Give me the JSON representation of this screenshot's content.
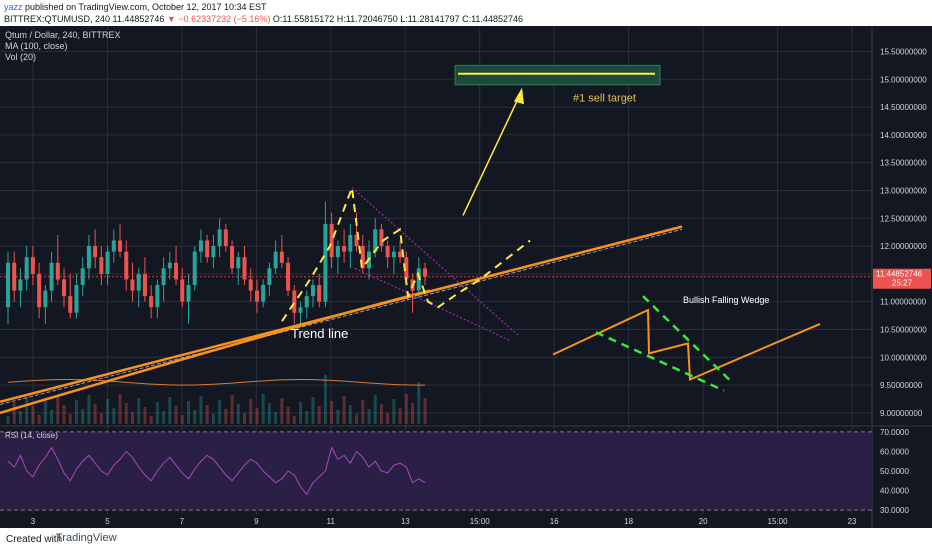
{
  "header": {
    "author": "yazz",
    "published_text": "published on TradingView.com, October 12, 2017 10:34 EST",
    "symbol_line_prefix": "BITTREX:QTUMUSD, 240  11.44852746",
    "change": "▼ −0.62337232 (−5.16%)",
    "ohlc": "O:11.55815172  H:11.72046750  L:11.28141797  C:11.44852746"
  },
  "legend": {
    "title": "Qtum / Dollar, 240, BITTREX",
    "ma": "MA (100, close)",
    "vol": "Vol (20)",
    "rsi": "RSI (14, close)"
  },
  "annotations": {
    "sell_target": "#1 sell target",
    "trend_line": "Trend line",
    "wedge": "Bullish Falling Wedge"
  },
  "price_badge": {
    "price": "11.44852746",
    "countdown": "25:27"
  },
  "footer": {
    "created_with": "Created with",
    "brand": "TradingView"
  },
  "colors": {
    "bg": "#131722",
    "grid": "#2a2e39",
    "up": "#26a69a",
    "down": "#ef5350",
    "annotation_yellow": "#ffeb3b",
    "annotation_orange": "#f7931a",
    "annotation_green": "#3ce63c",
    "wedge_purple": "#9c27b0",
    "rsi_fill": "#2a1f45"
  },
  "chart_data": {
    "type": "candlestick",
    "price_axis": {
      "ticks": [
        "15.50000000",
        "15.00000000",
        "14.50000000",
        "14.00000000",
        "13.50000000",
        "13.00000000",
        "12.50000000",
        "12.00000000",
        "11.50000000",
        "11.00000000",
        "10.50000000",
        "10.00000000",
        "9.50000000",
        "9.00000000"
      ],
      "ylim": [
        8.8,
        15.85
      ]
    },
    "rsi_axis": {
      "ticks": [
        "70.0000",
        "60.0000",
        "50.0000",
        "40.0000",
        "30.0000"
      ],
      "ylim": [
        28,
        72
      ],
      "bands": [
        70,
        30
      ]
    },
    "x_tick_labels": [
      "3",
      "5",
      "7",
      "9",
      "11",
      "13",
      "15:00",
      "16",
      "18",
      "20",
      "15:00",
      "23"
    ],
    "candles": [
      [
        10.9,
        11.9,
        10.6,
        11.7
      ],
      [
        11.7,
        11.9,
        11.0,
        11.2
      ],
      [
        11.2,
        11.6,
        10.9,
        11.4
      ],
      [
        11.4,
        12.0,
        11.2,
        11.8
      ],
      [
        11.8,
        12.0,
        11.3,
        11.5
      ],
      [
        11.5,
        11.7,
        10.7,
        10.9
      ],
      [
        10.9,
        11.3,
        10.6,
        11.2
      ],
      [
        11.2,
        11.9,
        11.0,
        11.7
      ],
      [
        11.7,
        12.2,
        11.3,
        11.4
      ],
      [
        11.4,
        11.6,
        10.9,
        11.1
      ],
      [
        11.1,
        11.5,
        10.7,
        10.8
      ],
      [
        10.8,
        11.5,
        10.7,
        11.3
      ],
      [
        11.3,
        11.8,
        11.1,
        11.6
      ],
      [
        11.6,
        12.2,
        11.4,
        12.0
      ],
      [
        12.0,
        12.3,
        11.6,
        11.8
      ],
      [
        11.8,
        12.0,
        11.3,
        11.5
      ],
      [
        11.5,
        12.0,
        11.3,
        11.9
      ],
      [
        11.9,
        12.3,
        11.7,
        12.1
      ],
      [
        12.1,
        12.4,
        11.8,
        11.9
      ],
      [
        11.9,
        12.1,
        11.2,
        11.4
      ],
      [
        11.4,
        11.7,
        11.0,
        11.2
      ],
      [
        11.2,
        11.6,
        10.9,
        11.5
      ],
      [
        11.5,
        11.8,
        11.0,
        11.1
      ],
      [
        11.1,
        11.3,
        10.7,
        10.9
      ],
      [
        10.9,
        11.4,
        10.7,
        11.3
      ],
      [
        11.3,
        11.8,
        11.0,
        11.6
      ],
      [
        11.6,
        11.9,
        11.4,
        11.7
      ],
      [
        11.7,
        12.0,
        11.3,
        11.4
      ],
      [
        11.4,
        11.6,
        10.9,
        11.0
      ],
      [
        11.0,
        11.5,
        10.6,
        11.3
      ],
      [
        11.3,
        12.0,
        11.2,
        11.9
      ],
      [
        11.9,
        12.3,
        11.7,
        12.1
      ],
      [
        12.1,
        12.2,
        11.7,
        11.8
      ],
      [
        11.8,
        12.2,
        11.6,
        12.0
      ],
      [
        12.0,
        12.5,
        11.8,
        12.3
      ],
      [
        12.3,
        12.4,
        11.9,
        12.0
      ],
      [
        12.0,
        12.1,
        11.5,
        11.6
      ],
      [
        11.6,
        11.9,
        11.3,
        11.8
      ],
      [
        11.8,
        12.0,
        11.3,
        11.4
      ],
      [
        11.4,
        11.6,
        11.0,
        11.2
      ],
      [
        11.2,
        11.4,
        10.8,
        11.0
      ],
      [
        11.0,
        11.4,
        10.9,
        11.3
      ],
      [
        11.3,
        11.7,
        11.1,
        11.6
      ],
      [
        11.6,
        12.1,
        11.5,
        11.9
      ],
      [
        11.9,
        12.2,
        11.6,
        11.7
      ],
      [
        11.7,
        11.8,
        11.1,
        11.2
      ],
      [
        11.2,
        11.3,
        10.6,
        10.8
      ],
      [
        10.8,
        11.0,
        10.6,
        10.9
      ],
      [
        10.9,
        11.2,
        10.7,
        11.1
      ],
      [
        11.1,
        11.4,
        10.9,
        11.3
      ],
      [
        11.3,
        11.5,
        10.9,
        11.0
      ],
      [
        11.0,
        12.8,
        10.9,
        12.4
      ],
      [
        12.4,
        12.6,
        11.6,
        11.8
      ],
      [
        11.8,
        12.1,
        11.5,
        12.0
      ],
      [
        12.0,
        12.3,
        11.7,
        11.9
      ],
      [
        11.9,
        12.4,
        11.6,
        12.2
      ],
      [
        12.2,
        12.6,
        11.9,
        12.0
      ],
      [
        12.0,
        12.2,
        11.5,
        11.6
      ],
      [
        11.6,
        12.1,
        11.4,
        11.9
      ],
      [
        11.9,
        12.5,
        11.8,
        12.3
      ],
      [
        12.3,
        12.4,
        11.9,
        12.0
      ],
      [
        12.0,
        12.1,
        11.6,
        11.8
      ],
      [
        11.8,
        12.0,
        11.5,
        11.9
      ],
      [
        11.9,
        12.1,
        11.7,
        11.8
      ],
      [
        11.8,
        11.9,
        11.3,
        11.4
      ],
      [
        11.4,
        11.5,
        10.8,
        11.2
      ],
      [
        11.2,
        11.8,
        11.1,
        11.6
      ],
      [
        11.6,
        11.7,
        11.3,
        11.45
      ]
    ],
    "volume_hint": "volume bars shown at bottom of price pane",
    "rsi": [
      55,
      52,
      58,
      50,
      47,
      53,
      57,
      62,
      56,
      49,
      45,
      51,
      55,
      58,
      54,
      50,
      48,
      53,
      56,
      60,
      57,
      52,
      48,
      45,
      50,
      54,
      57,
      53,
      49,
      46,
      51,
      55,
      58,
      56,
      52,
      48,
      45,
      49,
      53,
      56,
      54,
      50,
      47,
      44,
      46,
      50,
      48,
      42,
      38,
      44,
      47,
      50,
      62,
      56,
      58,
      54,
      60,
      57,
      52,
      55,
      50,
      49,
      53,
      54,
      52,
      44,
      46,
      44
    ]
  }
}
